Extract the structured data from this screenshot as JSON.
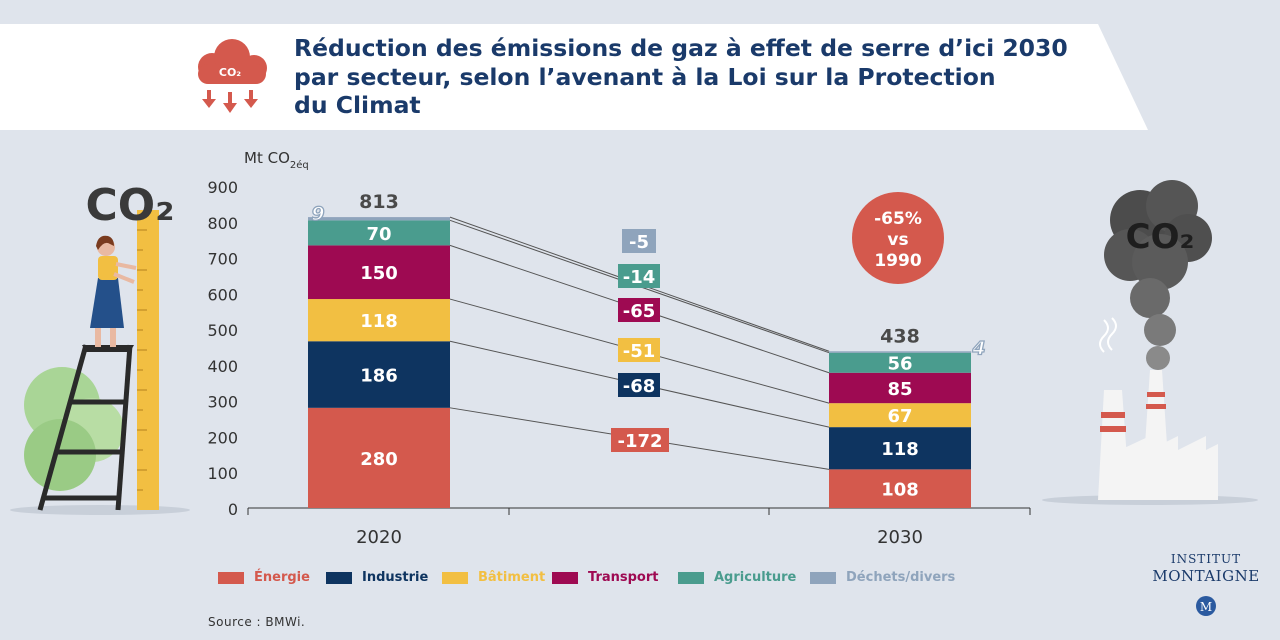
{
  "title_lines": [
    "Réduction des émissions de gaz à effet de serre d’ici 2030",
    "par secteur, selon l’avenant à la Loi sur la Protection",
    "du Climat"
  ],
  "header_icon": {
    "name": "co2-cloud-icon",
    "text": "CO₂"
  },
  "illustrations": {
    "left_text": "CO₂",
    "right_text": "CO₂"
  },
  "colors": {
    "Énergie": "#d4594d",
    "Industrie": "#0e3460",
    "Bâtiment": "#f2bf42",
    "Transport": "#9e0a52",
    "Agriculture": "#4a9c8e",
    "Déchets/divers": "#8fa4bc"
  },
  "chart_data": {
    "type": "bar",
    "stacked": true,
    "ylabel": "Mt CO₂éq",
    "ylabel_main": "Mt CO",
    "ylabel_sub": "2éq",
    "ylim": [
      0,
      900
    ],
    "yticks": [
      0,
      100,
      200,
      300,
      400,
      500,
      600,
      700,
      800,
      900
    ],
    "grid": false,
    "legend_position": "bottom",
    "categories": [
      "2020",
      "2030"
    ],
    "series": [
      {
        "name": "Énergie",
        "values": [
          280,
          108
        ],
        "change": "-172"
      },
      {
        "name": "Industrie",
        "values": [
          186,
          118
        ],
        "change": "-68"
      },
      {
        "name": "Bâtiment",
        "values": [
          118,
          67
        ],
        "change": "-51"
      },
      {
        "name": "Transport",
        "values": [
          150,
          85
        ],
        "change": "-65"
      },
      {
        "name": "Agriculture",
        "values": [
          70,
          56
        ],
        "change": "-14"
      },
      {
        "name": "Déchets/divers",
        "values": [
          9,
          4
        ],
        "change": "-5"
      }
    ],
    "totals": [
      813,
      438
    ],
    "annotation": {
      "line1": "-65%",
      "line2": "vs",
      "line3": "1990"
    }
  },
  "source": "Source : BMWi.",
  "logo": {
    "line1": "INSTITUT",
    "line2": "MONTAIGNE",
    "mark": "M"
  }
}
